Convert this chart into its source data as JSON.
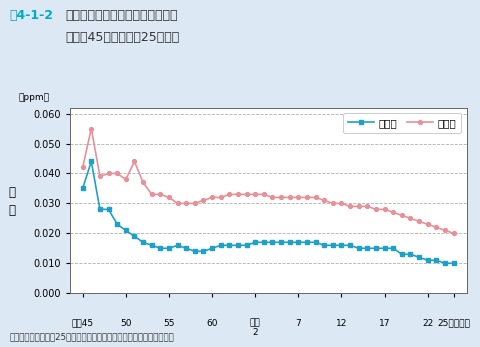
{
  "title_fig": "図4-1-2",
  "title_main": "二酸化窒素濃度の年平均値の推移",
  "title_sub": "（昭和45年度～平成25年度）",
  "ylabel_unit": "（ppm）",
  "ylabel_text": "濃\n度",
  "xlabel_note": "資料：環境省「平成25年度大気汚染状況について（報道発表資料）」",
  "background_color": "#dce9f5",
  "plot_bg_color": "#ffffff",
  "grid_color": "#b0b0b0",
  "ippan_color": "#1fa0c8",
  "jihai_color": "#e8909a",
  "ippan_label": "一般局",
  "jihai_label": "自排局",
  "x_tick_positions": [
    45,
    50,
    55,
    60,
    65,
    70,
    75,
    80,
    85,
    88
  ],
  "x_tick_labels_line1": [
    "昭和45",
    "50",
    "55",
    "60",
    "平成",
    "7",
    "12",
    "17",
    "22",
    "25（年度）"
  ],
  "x_tick_labels_line2": [
    "",
    "",
    "",
    "",
    "2",
    "",
    "",
    "",
    "",
    ""
  ],
  "ylim": [
    0.0,
    0.062
  ],
  "yticks": [
    0.0,
    0.01,
    0.02,
    0.03,
    0.04,
    0.05,
    0.06
  ],
  "ippan_x": [
    45,
    46,
    47,
    48,
    49,
    50,
    51,
    52,
    53,
    54,
    55,
    56,
    57,
    58,
    59,
    60,
    61,
    62,
    63,
    64,
    65,
    66,
    67,
    68,
    69,
    70,
    71,
    72,
    73,
    74,
    75,
    76,
    77,
    78,
    79,
    80,
    81,
    82,
    83,
    84,
    85,
    86,
    87,
    88
  ],
  "ippan_y": [
    0.035,
    0.044,
    0.028,
    0.028,
    0.023,
    0.021,
    0.019,
    0.017,
    0.016,
    0.015,
    0.015,
    0.016,
    0.015,
    0.014,
    0.014,
    0.015,
    0.016,
    0.016,
    0.016,
    0.016,
    0.017,
    0.017,
    0.017,
    0.017,
    0.017,
    0.017,
    0.017,
    0.017,
    0.016,
    0.016,
    0.016,
    0.016,
    0.015,
    0.015,
    0.015,
    0.015,
    0.015,
    0.013,
    0.013,
    0.012,
    0.011,
    0.011,
    0.01,
    0.01
  ],
  "jihai_x": [
    45,
    46,
    47,
    48,
    49,
    50,
    51,
    52,
    53,
    54,
    55,
    56,
    57,
    58,
    59,
    60,
    61,
    62,
    63,
    64,
    65,
    66,
    67,
    68,
    69,
    70,
    71,
    72,
    73,
    74,
    75,
    76,
    77,
    78,
    79,
    80,
    81,
    82,
    83,
    84,
    85,
    86,
    87,
    88
  ],
  "jihai_y": [
    0.042,
    0.055,
    0.039,
    0.04,
    0.04,
    0.038,
    0.044,
    0.037,
    0.033,
    0.033,
    0.032,
    0.03,
    0.03,
    0.03,
    0.031,
    0.032,
    0.032,
    0.033,
    0.033,
    0.033,
    0.033,
    0.033,
    0.032,
    0.032,
    0.032,
    0.032,
    0.032,
    0.032,
    0.031,
    0.03,
    0.03,
    0.029,
    0.029,
    0.029,
    0.028,
    0.028,
    0.027,
    0.026,
    0.025,
    0.024,
    0.023,
    0.022,
    0.021,
    0.02
  ]
}
